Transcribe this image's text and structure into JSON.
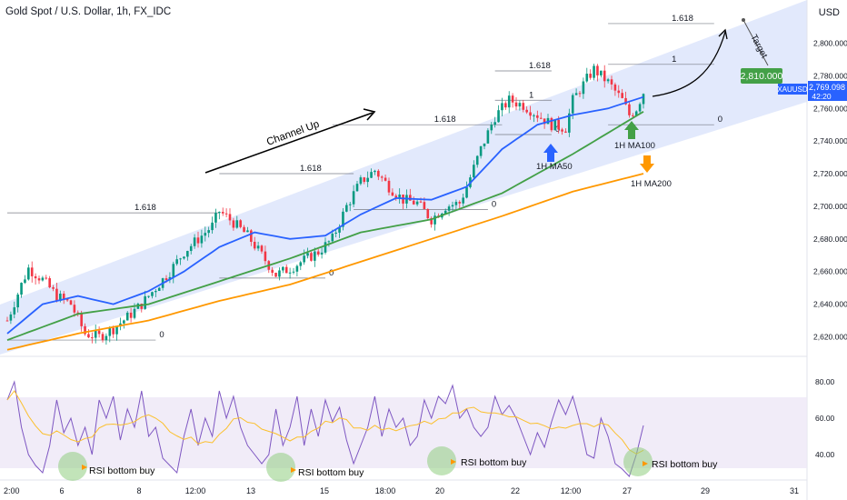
{
  "header": {
    "title": "Gold Spot / U.S. Dollar, 1h, FX_IDC"
  },
  "axis": {
    "currency": "USD"
  },
  "labels": {
    "channel": "Channel Up",
    "target": "Target",
    "ma50": "1H MA50",
    "ma100": "1H MA100",
    "ma200": "1H MA200",
    "target_price": "2,810.000",
    "symbol": "XAUUSD",
    "last_price": "2,769.098",
    "countdown": "42:20",
    "rsi_note": "RSI bottom buy"
  },
  "colors": {
    "candle_up": "#089981",
    "candle_down": "#f23645",
    "ma50": "#2962ff",
    "ma100": "#43a047",
    "ma200": "#ff9800",
    "channel_fill": "#dbe4fb",
    "rsi": "#7e57c2",
    "rsi_ma": "#fbc02d",
    "target_badge": "#43a047",
    "price_badge": "#2962ff"
  },
  "chart_data": {
    "type": "candlestick",
    "symbol": "XAUUSD",
    "timeframe": "1h",
    "price_axis": {
      "ticks": [
        "2,620.000",
        "2,640.000",
        "2,660.000",
        "2,680.000",
        "2,700.000",
        "2,720.000",
        "2,740.000",
        "2,760.000",
        "2,780.000",
        "2,800.000"
      ],
      "range": [
        2608,
        2822
      ]
    },
    "rsi_axis": {
      "ticks": [
        "40.00",
        "60.00",
        "80.00"
      ],
      "range": [
        26,
        92
      ],
      "band": [
        30,
        70
      ]
    },
    "x_ticks": [
      "2:00",
      "6",
      "8",
      "12:00",
      "13",
      "15",
      "18:00",
      "20",
      "22",
      "12:00",
      "27",
      "29",
      "31"
    ],
    "price_path": [
      [
        0,
        2630
      ],
      [
        4,
        2652
      ],
      [
        6,
        2662
      ],
      [
        10,
        2655
      ],
      [
        14,
        2645
      ],
      [
        18,
        2640
      ],
      [
        22,
        2622
      ],
      [
        26,
        2620
      ],
      [
        30,
        2625
      ],
      [
        34,
        2632
      ],
      [
        38,
        2640
      ],
      [
        42,
        2650
      ],
      [
        46,
        2660
      ],
      [
        50,
        2672
      ],
      [
        54,
        2680
      ],
      [
        58,
        2688
      ],
      [
        60,
        2697
      ],
      [
        64,
        2690
      ],
      [
        68,
        2682
      ],
      [
        72,
        2670
      ],
      [
        76,
        2658
      ],
      [
        80,
        2662
      ],
      [
        84,
        2667
      ],
      [
        88,
        2672
      ],
      [
        92,
        2680
      ],
      [
        96,
        2700
      ],
      [
        100,
        2715
      ],
      [
        104,
        2722
      ],
      [
        108,
        2712
      ],
      [
        112,
        2704
      ],
      [
        116,
        2702
      ],
      [
        120,
        2692
      ],
      [
        124,
        2700
      ],
      [
        128,
        2702
      ],
      [
        130,
        2712
      ],
      [
        134,
        2735
      ],
      [
        138,
        2755
      ],
      [
        142,
        2765
      ],
      [
        146,
        2762
      ],
      [
        150,
        2756
      ],
      [
        154,
        2750
      ],
      [
        158,
        2748
      ],
      [
        160,
        2765
      ],
      [
        164,
        2778
      ],
      [
        166,
        2784
      ],
      [
        170,
        2776
      ],
      [
        174,
        2765
      ],
      [
        176,
        2756
      ],
      [
        178,
        2760
      ],
      [
        180,
        2770
      ]
    ],
    "series": [
      {
        "name": "1H MA50",
        "points": [
          [
            0,
            2622
          ],
          [
            10,
            2640
          ],
          [
            20,
            2645
          ],
          [
            30,
            2640
          ],
          [
            40,
            2648
          ],
          [
            50,
            2660
          ],
          [
            60,
            2675
          ],
          [
            70,
            2684
          ],
          [
            80,
            2680
          ],
          [
            90,
            2682
          ],
          [
            100,
            2695
          ],
          [
            110,
            2705
          ],
          [
            120,
            2704
          ],
          [
            130,
            2712
          ],
          [
            140,
            2735
          ],
          [
            150,
            2750
          ],
          [
            160,
            2756
          ],
          [
            170,
            2760
          ],
          [
            180,
            2767
          ]
        ]
      },
      {
        "name": "1H MA100",
        "points": [
          [
            0,
            2618
          ],
          [
            20,
            2634
          ],
          [
            40,
            2640
          ],
          [
            60,
            2654
          ],
          [
            80,
            2668
          ],
          [
            100,
            2684
          ],
          [
            120,
            2692
          ],
          [
            140,
            2708
          ],
          [
            160,
            2732
          ],
          [
            180,
            2758
          ]
        ]
      },
      {
        "name": "1H MA200",
        "points": [
          [
            0,
            2612
          ],
          [
            20,
            2622
          ],
          [
            40,
            2630
          ],
          [
            60,
            2642
          ],
          [
            80,
            2652
          ],
          [
            100,
            2666
          ],
          [
            120,
            2680
          ],
          [
            140,
            2694
          ],
          [
            160,
            2709
          ],
          [
            180,
            2720
          ]
        ]
      }
    ],
    "rsi_path": [
      [
        0,
        70
      ],
      [
        2,
        80
      ],
      [
        4,
        55
      ],
      [
        6,
        40
      ],
      [
        8,
        34
      ],
      [
        10,
        30
      ],
      [
        12,
        45
      ],
      [
        14,
        70
      ],
      [
        16,
        52
      ],
      [
        18,
        60
      ],
      [
        20,
        45
      ],
      [
        22,
        55
      ],
      [
        24,
        40
      ],
      [
        26,
        70
      ],
      [
        28,
        60
      ],
      [
        30,
        72
      ],
      [
        32,
        48
      ],
      [
        34,
        65
      ],
      [
        36,
        55
      ],
      [
        38,
        75
      ],
      [
        40,
        50
      ],
      [
        42,
        55
      ],
      [
        44,
        38
      ],
      [
        46,
        34
      ],
      [
        48,
        30
      ],
      [
        50,
        50
      ],
      [
        52,
        65
      ],
      [
        54,
        45
      ],
      [
        56,
        60
      ],
      [
        58,
        50
      ],
      [
        60,
        75
      ],
      [
        62,
        60
      ],
      [
        64,
        72
      ],
      [
        66,
        55
      ],
      [
        68,
        45
      ],
      [
        70,
        40
      ],
      [
        72,
        35
      ],
      [
        74,
        40
      ],
      [
        76,
        65
      ],
      [
        78,
        45
      ],
      [
        80,
        55
      ],
      [
        82,
        72
      ],
      [
        84,
        45
      ],
      [
        86,
        65
      ],
      [
        88,
        50
      ],
      [
        90,
        70
      ],
      [
        92,
        58
      ],
      [
        94,
        66
      ],
      [
        96,
        48
      ],
      [
        98,
        35
      ],
      [
        100,
        45
      ],
      [
        102,
        55
      ],
      [
        104,
        72
      ],
      [
        106,
        50
      ],
      [
        108,
        65
      ],
      [
        110,
        55
      ],
      [
        112,
        60
      ],
      [
        114,
        45
      ],
      [
        116,
        50
      ],
      [
        118,
        70
      ],
      [
        120,
        60
      ],
      [
        122,
        72
      ],
      [
        124,
        68
      ],
      [
        126,
        78
      ],
      [
        128,
        60
      ],
      [
        130,
        65
      ],
      [
        132,
        55
      ],
      [
        134,
        50
      ],
      [
        136,
        55
      ],
      [
        138,
        72
      ],
      [
        140,
        62
      ],
      [
        142,
        67
      ],
      [
        144,
        60
      ],
      [
        146,
        50
      ],
      [
        148,
        40
      ],
      [
        150,
        52
      ],
      [
        152,
        44
      ],
      [
        154,
        58
      ],
      [
        156,
        70
      ],
      [
        158,
        62
      ],
      [
        160,
        72
      ],
      [
        162,
        58
      ],
      [
        164,
        40
      ],
      [
        166,
        38
      ],
      [
        168,
        60
      ],
      [
        170,
        50
      ],
      [
        172,
        35
      ],
      [
        174,
        32
      ],
      [
        176,
        28
      ],
      [
        178,
        40
      ],
      [
        180,
        56
      ]
    ],
    "fib_levels": [
      {
        "label": "0",
        "price": 2618,
        "from": 0,
        "to": 42
      },
      {
        "label": "1.618",
        "price": 2696,
        "from": 0,
        "to": 60
      },
      {
        "label": "0",
        "price": 2656,
        "from": 60,
        "to": 90
      },
      {
        "label": "1.618",
        "price": 2720,
        "from": 60,
        "to": 98
      },
      {
        "label": "0",
        "price": 2698,
        "from": 98,
        "to": 136
      },
      {
        "label": "1.618",
        "price": 2750,
        "from": 92,
        "to": 140
      },
      {
        "label": "0",
        "price": 2744,
        "from": 138,
        "to": 154
      },
      {
        "label": "1",
        "price": 2765,
        "from": 138,
        "to": 154
      },
      {
        "label": "1.618",
        "price": 2783,
        "from": 138,
        "to": 154
      },
      {
        "label": "0",
        "price": 2750,
        "from": 170,
        "to": 200
      },
      {
        "label": "1",
        "price": 2787,
        "from": 170,
        "to": 200
      },
      {
        "label": "1.618",
        "price": 2812,
        "from": 170,
        "to": 200
      }
    ],
    "target": 2810,
    "last_price": 2769.098,
    "annotations": [
      "Channel Up",
      "Target",
      "1H MA50",
      "1H MA100",
      "1H MA200",
      "RSI bottom buy"
    ]
  }
}
